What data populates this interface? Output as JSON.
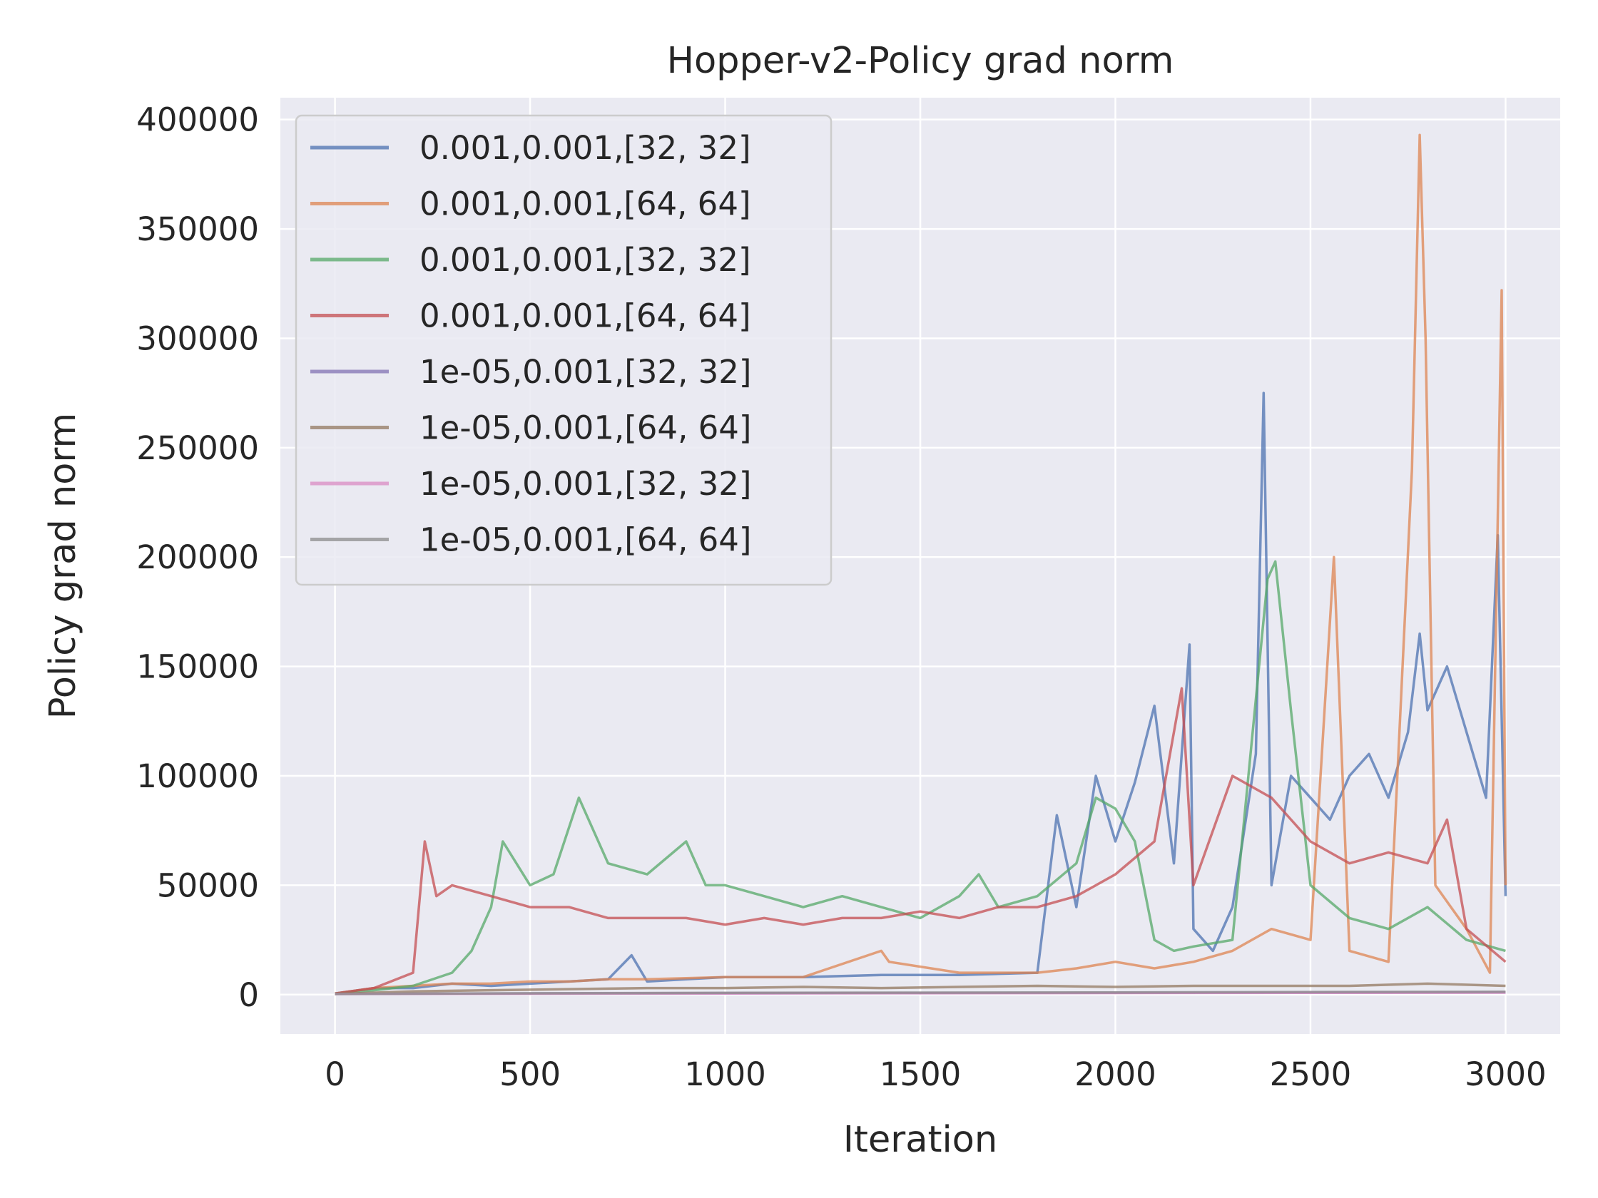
{
  "chart_data": {
    "type": "line",
    "title": "Hopper-v2-Policy grad norm",
    "xlabel": "Iteration",
    "ylabel": "Policy grad norm",
    "xlim": [
      -140,
      3140
    ],
    "ylim": [
      -18000,
      410000
    ],
    "xticks": [
      0,
      500,
      1000,
      1500,
      2000,
      2500,
      3000
    ],
    "xtick_labels": [
      "0",
      "500",
      "1000",
      "1500",
      "2000",
      "2500",
      "3000"
    ],
    "yticks": [
      0,
      50000,
      100000,
      150000,
      200000,
      250000,
      300000,
      350000,
      400000
    ],
    "ytick_labels": [
      "0",
      "50000",
      "100000",
      "150000",
      "200000",
      "250000",
      "300000",
      "350000",
      "400000"
    ],
    "grid": true,
    "legend_position": "upper-left",
    "background": "#eaeaf2",
    "series": [
      {
        "name": "0.001,0.001,[32, 32]",
        "color": "#4c72b0",
        "points": [
          [
            0,
            500
          ],
          [
            100,
            3000
          ],
          [
            200,
            3000
          ],
          [
            300,
            5000
          ],
          [
            400,
            4000
          ],
          [
            500,
            5000
          ],
          [
            600,
            6000
          ],
          [
            700,
            7000
          ],
          [
            760,
            18000
          ],
          [
            800,
            6000
          ],
          [
            900,
            7000
          ],
          [
            1000,
            8000
          ],
          [
            1200,
            8000
          ],
          [
            1400,
            9000
          ],
          [
            1600,
            9000
          ],
          [
            1800,
            10000
          ],
          [
            1850,
            82000
          ],
          [
            1900,
            40000
          ],
          [
            1950,
            100000
          ],
          [
            2000,
            70000
          ],
          [
            2050,
            97000
          ],
          [
            2100,
            132000
          ],
          [
            2150,
            60000
          ],
          [
            2190,
            160000
          ],
          [
            2200,
            30000
          ],
          [
            2250,
            20000
          ],
          [
            2300,
            40000
          ],
          [
            2360,
            110000
          ],
          [
            2380,
            275000
          ],
          [
            2400,
            50000
          ],
          [
            2450,
            100000
          ],
          [
            2500,
            90000
          ],
          [
            2550,
            80000
          ],
          [
            2600,
            100000
          ],
          [
            2650,
            110000
          ],
          [
            2700,
            90000
          ],
          [
            2750,
            120000
          ],
          [
            2780,
            165000
          ],
          [
            2800,
            130000
          ],
          [
            2850,
            150000
          ],
          [
            2900,
            120000
          ],
          [
            2950,
            90000
          ],
          [
            2980,
            210000
          ],
          [
            3000,
            45000
          ]
        ]
      },
      {
        "name": "0.001,0.001,[64, 64]",
        "color": "#dd8452",
        "points": [
          [
            0,
            500
          ],
          [
            100,
            3000
          ],
          [
            200,
            4000
          ],
          [
            300,
            5000
          ],
          [
            400,
            5000
          ],
          [
            500,
            6000
          ],
          [
            600,
            6000
          ],
          [
            700,
            7000
          ],
          [
            800,
            7000
          ],
          [
            1000,
            8000
          ],
          [
            1200,
            8000
          ],
          [
            1400,
            20000
          ],
          [
            1420,
            15000
          ],
          [
            1600,
            10000
          ],
          [
            1800,
            10000
          ],
          [
            1900,
            12000
          ],
          [
            2000,
            15000
          ],
          [
            2100,
            12000
          ],
          [
            2200,
            15000
          ],
          [
            2300,
            20000
          ],
          [
            2400,
            30000
          ],
          [
            2500,
            25000
          ],
          [
            2560,
            200000
          ],
          [
            2600,
            20000
          ],
          [
            2700,
            15000
          ],
          [
            2760,
            240000
          ],
          [
            2780,
            393000
          ],
          [
            2795,
            300000
          ],
          [
            2820,
            50000
          ],
          [
            2900,
            30000
          ],
          [
            2960,
            10000
          ],
          [
            2990,
            322000
          ],
          [
            3000,
            50000
          ]
        ]
      },
      {
        "name": "0.001,0.001,[32, 32]",
        "color": "#55a868",
        "points": [
          [
            0,
            500
          ],
          [
            100,
            2000
          ],
          [
            200,
            4000
          ],
          [
            300,
            10000
          ],
          [
            350,
            20000
          ],
          [
            400,
            40000
          ],
          [
            430,
            70000
          ],
          [
            500,
            50000
          ],
          [
            560,
            55000
          ],
          [
            625,
            90000
          ],
          [
            700,
            60000
          ],
          [
            800,
            55000
          ],
          [
            900,
            70000
          ],
          [
            950,
            50000
          ],
          [
            1000,
            50000
          ],
          [
            1100,
            45000
          ],
          [
            1200,
            40000
          ],
          [
            1300,
            45000
          ],
          [
            1400,
            40000
          ],
          [
            1500,
            35000
          ],
          [
            1600,
            45000
          ],
          [
            1650,
            55000
          ],
          [
            1700,
            40000
          ],
          [
            1800,
            45000
          ],
          [
            1900,
            60000
          ],
          [
            1950,
            90000
          ],
          [
            2000,
            85000
          ],
          [
            2050,
            70000
          ],
          [
            2100,
            25000
          ],
          [
            2150,
            20000
          ],
          [
            2200,
            22000
          ],
          [
            2300,
            25000
          ],
          [
            2390,
            190000
          ],
          [
            2410,
            198000
          ],
          [
            2450,
            130000
          ],
          [
            2500,
            50000
          ],
          [
            2600,
            35000
          ],
          [
            2700,
            30000
          ],
          [
            2800,
            40000
          ],
          [
            2900,
            25000
          ],
          [
            3000,
            20000
          ]
        ]
      },
      {
        "name": "0.001,0.001,[64, 64]",
        "color": "#c44e52",
        "points": [
          [
            0,
            500
          ],
          [
            100,
            3000
          ],
          [
            200,
            10000
          ],
          [
            230,
            70000
          ],
          [
            260,
            45000
          ],
          [
            300,
            50000
          ],
          [
            400,
            45000
          ],
          [
            500,
            40000
          ],
          [
            600,
            40000
          ],
          [
            700,
            35000
          ],
          [
            800,
            35000
          ],
          [
            900,
            35000
          ],
          [
            1000,
            32000
          ],
          [
            1100,
            35000
          ],
          [
            1200,
            32000
          ],
          [
            1300,
            35000
          ],
          [
            1400,
            35000
          ],
          [
            1500,
            38000
          ],
          [
            1600,
            35000
          ],
          [
            1700,
            40000
          ],
          [
            1800,
            40000
          ],
          [
            1900,
            45000
          ],
          [
            2000,
            55000
          ],
          [
            2100,
            70000
          ],
          [
            2170,
            140000
          ],
          [
            2200,
            50000
          ],
          [
            2300,
            100000
          ],
          [
            2400,
            90000
          ],
          [
            2500,
            70000
          ],
          [
            2600,
            60000
          ],
          [
            2700,
            65000
          ],
          [
            2800,
            60000
          ],
          [
            2850,
            80000
          ],
          [
            2900,
            30000
          ],
          [
            3000,
            15000
          ]
        ]
      },
      {
        "name": "1e-05,0.001,[32, 32]",
        "color": "#8172b3",
        "points": [
          [
            0,
            300
          ],
          [
            500,
            500
          ],
          [
            1000,
            600
          ],
          [
            1500,
            700
          ],
          [
            2000,
            800
          ],
          [
            2500,
            900
          ],
          [
            3000,
            1000
          ]
        ]
      },
      {
        "name": "1e-05,0.001,[64, 64]",
        "color": "#937860",
        "points": [
          [
            0,
            300
          ],
          [
            200,
            1500
          ],
          [
            400,
            2000
          ],
          [
            600,
            2500
          ],
          [
            800,
            3000
          ],
          [
            1000,
            3000
          ],
          [
            1200,
            3500
          ],
          [
            1400,
            3000
          ],
          [
            1600,
            3500
          ],
          [
            1800,
            4000
          ],
          [
            2000,
            3500
          ],
          [
            2200,
            4000
          ],
          [
            2400,
            4000
          ],
          [
            2600,
            4000
          ],
          [
            2800,
            5000
          ],
          [
            3000,
            4000
          ]
        ]
      },
      {
        "name": "1e-05,0.001,[32, 32]",
        "color": "#da8bc3",
        "points": [
          [
            0,
            300
          ],
          [
            500,
            400
          ],
          [
            1000,
            500
          ],
          [
            1500,
            600
          ],
          [
            2000,
            700
          ],
          [
            2500,
            800
          ],
          [
            3000,
            900
          ]
        ]
      },
      {
        "name": "1e-05,0.001,[64, 64]",
        "color": "#8c8c8c",
        "points": [
          [
            0,
            300
          ],
          [
            500,
            600
          ],
          [
            1000,
            800
          ],
          [
            1500,
            900
          ],
          [
            2000,
            1000
          ],
          [
            2500,
            1200
          ],
          [
            3000,
            1300
          ]
        ]
      }
    ]
  }
}
